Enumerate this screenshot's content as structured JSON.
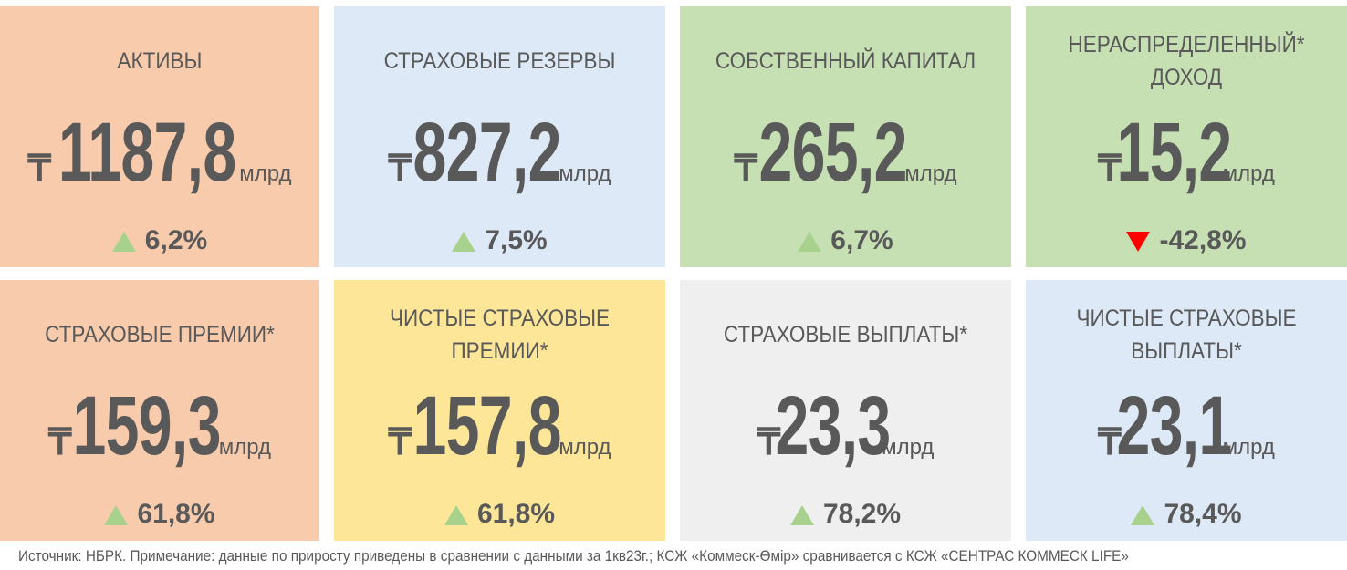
{
  "cards": [
    {
      "title": "АКТИВЫ",
      "currency": "₸",
      "value": "1187,8",
      "unit": "млрд",
      "change": "6,2%"
    },
    {
      "title": "СТРАХОВЫЕ РЕЗЕРВЫ",
      "currency": "₸",
      "value": "827,2",
      "unit": "млрд",
      "change": "7,5%"
    },
    {
      "title": "СОБСТВЕННЫЙ КАПИТАЛ",
      "currency": "₸",
      "value": "265,2",
      "unit": "млрд",
      "change": "6,7%"
    },
    {
      "title": "НЕРАСПРЕДЕЛЕННЫЙ*\nДОХОД",
      "currency": "₸",
      "value": "15,2",
      "unit": "млрд",
      "change": "-42,8%"
    },
    {
      "title": "СТРАХОВЫЕ ПРЕМИИ*",
      "currency": "₸",
      "value": "159,3",
      "unit": "млрд",
      "change": "61,8%"
    },
    {
      "title": "ЧИСТЫЕ СТРАХОВЫЕ\nПРЕМИИ*",
      "currency": "₸",
      "value": "157,8",
      "unit": "млрд",
      "change": "61,8%"
    },
    {
      "title": "СТРАХОВЫЕ ВЫПЛАТЫ*",
      "currency": "₸",
      "value": "23,3",
      "unit": "млрд",
      "change": "78,2%"
    },
    {
      "title": "ЧИСТЫЕ СТРАХОВЫЕ\nВЫПЛАТЫ*",
      "currency": "₸",
      "value": "23,1",
      "unit": "млрд",
      "change": "78,4%"
    }
  ],
  "footer": "Источник: НБРК. Примечание: данные по приросту приведены в сравнении с данными за 1кв23г.; КСЖ «Коммеск-Өмір» сравнивается с КСЖ «СЕНТРАС КОММЕСК LIFE»"
}
